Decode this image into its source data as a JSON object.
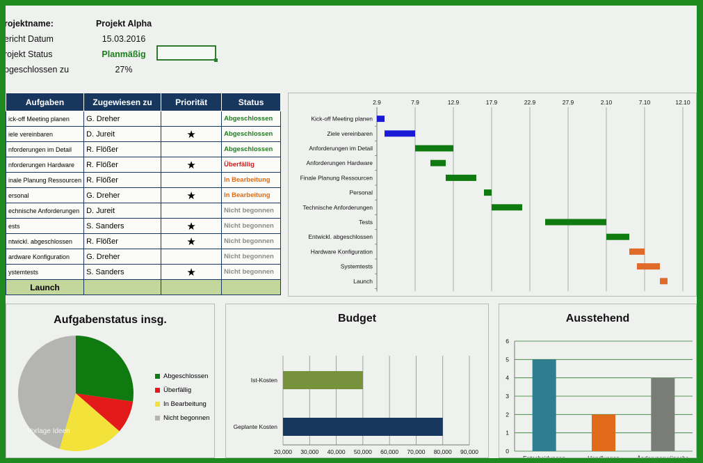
{
  "project": {
    "name_label": "rojektname:",
    "name_value": "Projekt Alpha",
    "date_label": "ericht Datum",
    "date_value": "15.03.2016",
    "status_label": "rojekt Status",
    "status_value": "Planmäßig",
    "done_label": "bgeschlossen zu",
    "done_value": "27%"
  },
  "table": {
    "headers": [
      "Aufgaben",
      "Zugewiesen zu",
      "Priorität",
      "Status"
    ],
    "rows": [
      {
        "task": "ick-off Meeting planen",
        "assignee": "G. Dreher",
        "priority": "",
        "status": "Abgeschlossen",
        "cls": "st-green"
      },
      {
        "task": "iele vereinbaren",
        "assignee": "D. Jureit",
        "priority": "★",
        "status": "Abgeschlossen",
        "cls": "st-green"
      },
      {
        "task": "nforderungen  im Detail",
        "assignee": "R. Flößer",
        "priority": "",
        "status": "Abgeschlossen",
        "cls": "st-green"
      },
      {
        "task": "nforderungen Hardware",
        "assignee": "R. Flößer",
        "priority": "★",
        "status": "Überfällig",
        "cls": "st-red"
      },
      {
        "task": "inale Planung Ressourcen",
        "assignee": "R. Flößer",
        "priority": "",
        "status": "In Bearbeitung",
        "cls": "st-orange"
      },
      {
        "task": "ersonal",
        "assignee": "G. Dreher",
        "priority": "★",
        "status": "In Bearbeitung",
        "cls": "st-orange"
      },
      {
        "task": "echnische Anforderungen",
        "assignee": "D. Jureit",
        "priority": "",
        "status": "Nicht begonnen",
        "cls": "st-gray"
      },
      {
        "task": "ests",
        "assignee": "S. Sanders",
        "priority": "★",
        "status": "Nicht begonnen",
        "cls": "st-gray"
      },
      {
        "task": "ntwickl. abgeschlossen",
        "assignee": "R. Flößer",
        "priority": "★",
        "status": "Nicht begonnen",
        "cls": "st-gray"
      },
      {
        "task": "ardware Konfiguration",
        "assignee": "G. Dreher",
        "priority": "",
        "status": "Nicht begonnen",
        "cls": "st-gray"
      },
      {
        "task": "ystemtests",
        "assignee": "S. Sanders",
        "priority": "★",
        "status": "Nicht begonnen",
        "cls": "st-gray"
      }
    ],
    "launch_label": "Launch"
  },
  "chart_data": [
    {
      "type": "gantt",
      "x_ticks": [
        "2.9",
        "7.9",
        "12.9",
        "17.9",
        "22.9",
        "27.9",
        "2.10",
        "7.10",
        "12.10"
      ],
      "x_tick_days": [
        0,
        5,
        10,
        15,
        20,
        25,
        30,
        35,
        40
      ],
      "tasks": [
        {
          "name": "Kick-off Meeting planen",
          "start": 0,
          "end": 1,
          "color": "#1a1ad6"
        },
        {
          "name": "Ziele vereinbaren",
          "start": 1,
          "end": 5,
          "color": "#1a1ad6"
        },
        {
          "name": "Anforderungen  im Detail",
          "start": 5,
          "end": 10,
          "color": "#0f7a0f"
        },
        {
          "name": "Anforderungen Hardware",
          "start": 7,
          "end": 9,
          "color": "#0f7a0f"
        },
        {
          "name": "Finale Planung Ressourcen",
          "start": 9,
          "end": 13,
          "color": "#0f7a0f"
        },
        {
          "name": "Personal",
          "start": 14,
          "end": 15,
          "color": "#0f7a0f"
        },
        {
          "name": "Technische Anforderungen",
          "start": 15,
          "end": 19,
          "color": "#0f7a0f"
        },
        {
          "name": "Tests",
          "start": 22,
          "end": 30,
          "color": "#0f7a0f"
        },
        {
          "name": "Entwickl. abgeschlossen",
          "start": 30,
          "end": 33,
          "color": "#0f7a0f"
        },
        {
          "name": "Hardware Konfiguration",
          "start": 33,
          "end": 35,
          "color": "#e06a2a"
        },
        {
          "name": "Systemtests",
          "start": 34,
          "end": 37,
          "color": "#e06a2a"
        },
        {
          "name": "Launch",
          "start": 37,
          "end": 38,
          "color": "#e06a2a"
        }
      ],
      "xlim": [
        0,
        41
      ]
    },
    {
      "type": "pie",
      "title": "Aufgabenstatus insg.",
      "slices": [
        {
          "label": "Abgeschlossen",
          "value": 3,
          "color": "#0f7a0f"
        },
        {
          "label": "Überfällig",
          "value": 1,
          "color": "#e21a1a"
        },
        {
          "label": "In Bearbeitung",
          "value": 2,
          "color": "#f3e23a"
        },
        {
          "label": "Nicht begonnen",
          "value": 5,
          "color": "#b4b4b2"
        }
      ]
    },
    {
      "type": "bar",
      "orientation": "horizontal",
      "title": "Budget",
      "categories": [
        "Ist-Kosten",
        "Geplante Kosten"
      ],
      "values": [
        50000,
        80000
      ],
      "colors": [
        "#76923c",
        "#17375e"
      ],
      "x_ticks": [
        "20,000",
        "30,000",
        "40,000",
        "50,000",
        "60,000",
        "70,000",
        "80,000",
        "90,000"
      ],
      "xlim": [
        20000,
        90000
      ]
    },
    {
      "type": "bar",
      "title": "Ausstehend",
      "categories": [
        "Entscheidungen",
        "Handlungen",
        "Änderungswünsche"
      ],
      "values": [
        5,
        2,
        4
      ],
      "colors": [
        "#2e7d91",
        "#e06a1a",
        "#7a7c78"
      ],
      "y_ticks": [
        "0",
        "1",
        "2",
        "3",
        "4",
        "5",
        "6"
      ],
      "ylim": [
        0,
        6
      ]
    }
  ],
  "watermark": "Vorlage Ideen"
}
